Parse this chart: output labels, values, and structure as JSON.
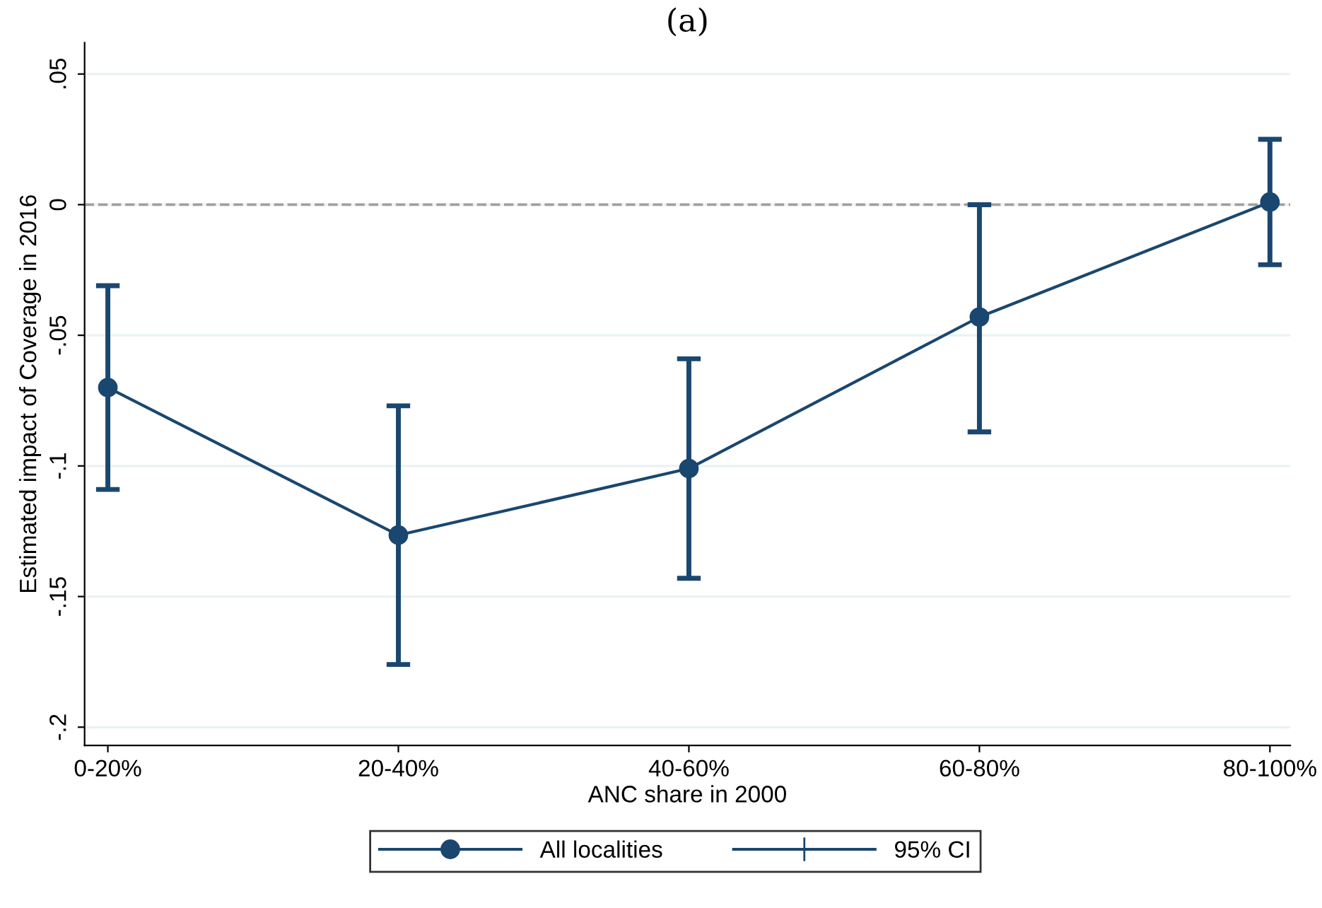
{
  "chart_data": {
    "type": "line",
    "title": "(a)",
    "xlabel": "ANC share in 2000",
    "ylabel": "Estimated impact of Coverage in 2016",
    "categories": [
      "0-20%",
      "20-40%",
      "40-60%",
      "60-80%",
      "80-100%"
    ],
    "series": [
      {
        "name": "All localities",
        "color": "#1a476f",
        "values": [
          -0.07,
          -0.1265,
          -0.101,
          -0.043,
          0.001
        ],
        "errors": [
          [
            -0.109,
            -0.031
          ],
          [
            -0.176,
            -0.077
          ],
          [
            -0.143,
            -0.059
          ],
          [
            -0.087,
            0.0
          ],
          [
            -0.023,
            0.025
          ]
        ]
      }
    ],
    "annotations": [
      "95% CI"
    ],
    "ylim": [
      -0.207,
      0.062
    ],
    "yticks": [
      {
        "value": -0.2,
        "label": "-.2"
      },
      {
        "value": -0.15,
        "label": "-.15"
      },
      {
        "value": -0.1,
        "label": "-.1"
      },
      {
        "value": -0.05,
        "label": "-.05"
      },
      0,
      {
        "value": 0.05,
        "label": ".05"
      }
    ],
    "ref_lines": [
      {
        "axis": "y",
        "value": 0,
        "color": "#a0a0a0",
        "line_style": "dashed"
      }
    ],
    "grid": "y",
    "legend": "bottom",
    "marker": "circle",
    "line_style": "solid"
  }
}
